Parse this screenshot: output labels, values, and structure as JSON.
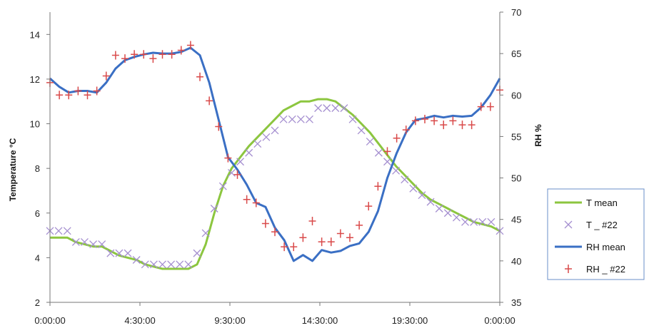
{
  "chart_data": {
    "type": "line",
    "title": "",
    "x_tick_labels": [
      "0:00:00",
      "4:30:00",
      "9:30:00",
      "14:30:00",
      "19:30:00",
      "0:00:00"
    ],
    "y_left": {
      "label": "Temperature °C",
      "ylim": [
        2,
        15
      ],
      "ticks": [
        2,
        4,
        6,
        8,
        10,
        12,
        14
      ]
    },
    "y_right": {
      "label": "RH %",
      "ylim": [
        35,
        70
      ],
      "ticks": [
        35,
        40,
        45,
        50,
        55,
        60,
        65,
        70
      ]
    },
    "grid": false,
    "legend_position": "right",
    "series": [
      {
        "name": "T  mean",
        "axis": "left",
        "style": "line",
        "color": "#8cc63f",
        "values": [
          4.9,
          4.9,
          4.9,
          4.7,
          4.6,
          4.5,
          4.5,
          4.3,
          4.1,
          4.0,
          3.9,
          3.7,
          3.6,
          3.5,
          3.5,
          3.5,
          3.5,
          3.7,
          4.6,
          6.0,
          7.2,
          8.0,
          8.5,
          9.0,
          9.4,
          9.8,
          10.2,
          10.6,
          10.8,
          11.0,
          11.0,
          11.1,
          11.1,
          11.0,
          10.7,
          10.4,
          10.0,
          9.6,
          9.1,
          8.6,
          8.1,
          7.7,
          7.3,
          6.9,
          6.6,
          6.4,
          6.2,
          6.0,
          5.8,
          5.6,
          5.5,
          5.4,
          5.2
        ]
      },
      {
        "name": "T _ #22",
        "axis": "left",
        "style": "marker-x",
        "color": "#a58fd0",
        "values": [
          5.2,
          5.2,
          5.2,
          4.7,
          4.7,
          4.6,
          4.6,
          4.2,
          4.2,
          4.2,
          3.9,
          3.7,
          3.7,
          3.7,
          3.7,
          3.7,
          3.7,
          4.2,
          5.1,
          6.2,
          7.2,
          7.8,
          8.3,
          8.7,
          9.1,
          9.4,
          9.7,
          10.2,
          10.2,
          10.2,
          10.2,
          10.7,
          10.7,
          10.7,
          10.7,
          10.2,
          9.7,
          9.2,
          8.7,
          8.3,
          7.9,
          7.5,
          7.1,
          6.8,
          6.5,
          6.2,
          6.0,
          5.8,
          5.6,
          5.6,
          5.6,
          5.6,
          5.2
        ]
      },
      {
        "name": "RH mean",
        "axis": "right",
        "style": "line",
        "color": "#3a6fc4",
        "values": [
          62.0,
          61.0,
          60.3,
          60.5,
          60.5,
          60.3,
          61.5,
          63.2,
          64.2,
          64.6,
          64.9,
          65.1,
          65.0,
          65.0,
          65.2,
          65.7,
          64.8,
          61.5,
          57.0,
          52.5,
          51.0,
          49.2,
          47.0,
          46.5,
          44.0,
          42.5,
          40.0,
          40.7,
          40.0,
          41.3,
          41.0,
          41.2,
          41.8,
          42.1,
          43.5,
          46.0,
          50.0,
          53.0,
          55.5,
          57.0,
          57.2,
          57.5,
          57.3,
          57.5,
          57.4,
          57.5,
          58.5,
          60.0,
          62.0
        ]
      },
      {
        "name": "RH _ #22",
        "axis": "right",
        "style": "marker-plus",
        "color": "#d94a4a",
        "values": [
          61.5,
          60.0,
          60.0,
          60.5,
          60.0,
          60.5,
          62.3,
          64.8,
          64.4,
          64.9,
          64.9,
          64.4,
          64.9,
          64.9,
          65.4,
          66.0,
          62.2,
          59.3,
          56.2,
          52.4,
          50.4,
          47.4,
          47.0,
          44.5,
          43.5,
          41.7,
          41.7,
          42.8,
          44.8,
          42.3,
          42.3,
          43.3,
          42.8,
          44.3,
          46.6,
          49.0,
          53.2,
          54.8,
          55.8,
          56.9,
          57.1,
          56.9,
          56.4,
          56.9,
          56.4,
          56.4,
          58.6,
          58.6,
          60.6
        ]
      }
    ]
  }
}
